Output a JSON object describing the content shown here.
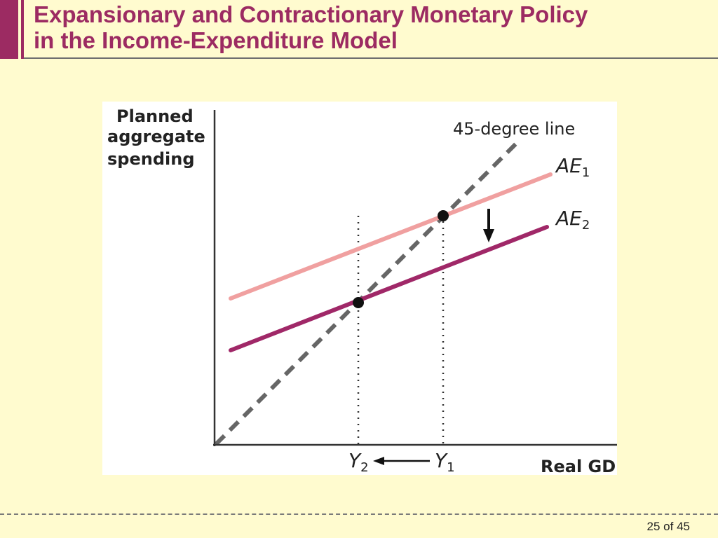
{
  "slide": {
    "title_line1": "Expansionary and Contractionary Monetary Policy",
    "title_line2": "in the Income-Expenditure Model",
    "page_number": "25 of 45"
  },
  "colors": {
    "title": "#9c2b62",
    "background": "#fffbcf",
    "ae1_line": "#f0a0a0",
    "ae2_line": "#a02868",
    "degree_line": "#666666"
  },
  "diagram": {
    "y_axis_label": [
      "Planned",
      "aggregate",
      "spending"
    ],
    "x_axis_label": "Real GDP",
    "degree_line_label": "45-degree line",
    "curves": [
      {
        "main": "AE",
        "sub": "1"
      },
      {
        "main": "AE",
        "sub": "2"
      }
    ],
    "equilibria": [
      {
        "main": "Y",
        "sub": "1"
      },
      {
        "main": "Y",
        "sub": "2"
      }
    ]
  }
}
